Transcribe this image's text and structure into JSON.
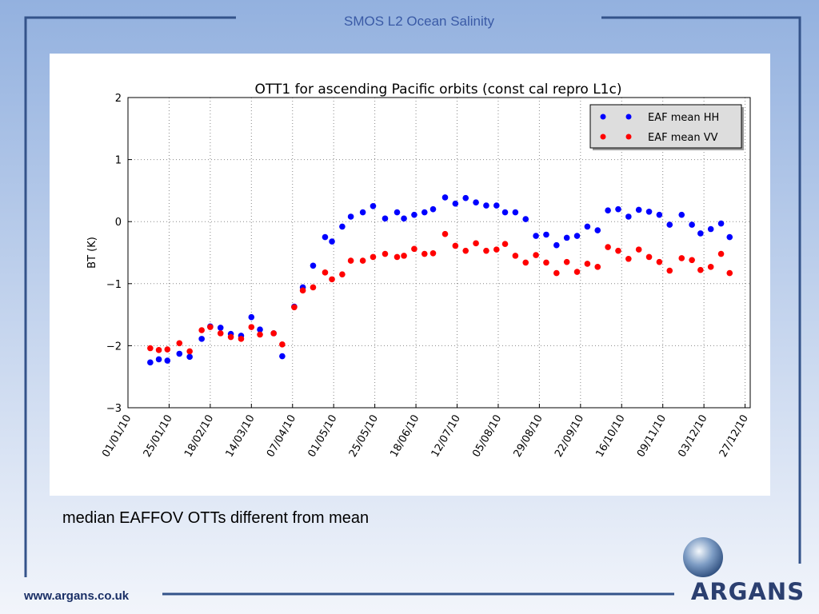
{
  "header": "SMOS L2 Ocean Salinity",
  "caption": "median EAFFOV OTTs different from mean",
  "footer": "www.argans.co.uk",
  "logo_text": "ARGANS",
  "chart_data": {
    "type": "scatter",
    "title": "OTT1 for ascending Pacific orbits (const cal repro L1c)",
    "y_label": "BT (K)",
    "x": [
      "2010-01-14",
      "2010-01-19",
      "2010-01-24",
      "2010-01-31",
      "2010-02-06",
      "2010-02-13",
      "2010-02-18",
      "2010-02-24",
      "2010-03-02",
      "2010-03-08",
      "2010-03-14",
      "2010-03-19",
      "2010-03-27",
      "2010-04-01",
      "2010-04-08",
      "2010-04-13",
      "2010-04-19",
      "2010-04-26",
      "2010-04-30",
      "2010-05-06",
      "2010-05-11",
      "2010-05-18",
      "2010-05-24",
      "2010-05-31",
      "2010-06-07",
      "2010-06-11",
      "2010-06-17",
      "2010-06-23",
      "2010-06-28",
      "2010-07-05",
      "2010-07-11",
      "2010-07-17",
      "2010-07-23",
      "2010-07-29",
      "2010-08-04",
      "2010-08-09",
      "2010-08-15",
      "2010-08-21",
      "2010-08-27",
      "2010-09-02",
      "2010-09-08",
      "2010-09-14",
      "2010-09-20",
      "2010-09-26",
      "2010-10-02",
      "2010-10-08",
      "2010-10-14",
      "2010-10-20",
      "2010-10-26",
      "2010-11-01",
      "2010-11-07",
      "2010-11-13",
      "2010-11-20",
      "2010-11-26",
      "2010-12-01",
      "2010-12-07",
      "2010-12-13",
      "2010-12-18"
    ],
    "series": [
      {
        "name": "EAF mean HH",
        "color": "#0000ff",
        "values": [
          -2.27,
          -2.22,
          -2.24,
          -2.13,
          -2.18,
          -1.89,
          -1.69,
          -1.71,
          -1.81,
          -1.84,
          -1.54,
          -1.74,
          -1.8,
          -2.17,
          -1.37,
          -1.06,
          -0.71,
          -0.25,
          -0.32,
          -0.08,
          0.08,
          0.15,
          0.25,
          0.05,
          0.15,
          0.05,
          0.11,
          0.15,
          0.2,
          0.39,
          0.29,
          0.38,
          0.31,
          0.26,
          0.26,
          0.15,
          0.15,
          0.04,
          -0.23,
          -0.21,
          -0.38,
          -0.26,
          -0.23,
          -0.08,
          -0.14,
          0.18,
          0.2,
          0.08,
          0.19,
          0.16,
          0.11,
          -0.05,
          0.11,
          -0.05,
          -0.19,
          -0.12,
          -0.03,
          -0.25
        ]
      },
      {
        "name": "EAF mean VV",
        "color": "#ff0000",
        "values": [
          -2.04,
          -2.07,
          -2.06,
          -1.96,
          -2.09,
          -1.75,
          -1.7,
          -1.8,
          -1.86,
          -1.89,
          -1.7,
          -1.82,
          -1.8,
          -1.98,
          -1.38,
          -1.11,
          -1.06,
          -0.82,
          -0.93,
          -0.85,
          -0.63,
          -0.63,
          -0.57,
          -0.52,
          -0.57,
          -0.55,
          -0.44,
          -0.52,
          -0.51,
          -0.2,
          -0.39,
          -0.47,
          -0.35,
          -0.47,
          -0.45,
          -0.36,
          -0.55,
          -0.66,
          -0.54,
          -0.66,
          -0.83,
          -0.65,
          -0.81,
          -0.68,
          -0.73,
          -0.41,
          -0.47,
          -0.6,
          -0.45,
          -0.57,
          -0.65,
          -0.79,
          -0.59,
          -0.62,
          -0.78,
          -0.73,
          -0.52,
          -0.83
        ]
      }
    ],
    "xlim": [
      "2010-01-01",
      "2010-12-30"
    ],
    "xticks": [
      {
        "value": "2010-01-01",
        "label": "01/01/10"
      },
      {
        "value": "2010-01-25",
        "label": "25/01/10"
      },
      {
        "value": "2010-02-18",
        "label": "18/02/10"
      },
      {
        "value": "2010-03-14",
        "label": "14/03/10"
      },
      {
        "value": "2010-04-07",
        "label": "07/04/10"
      },
      {
        "value": "2010-05-01",
        "label": "01/05/10"
      },
      {
        "value": "2010-05-25",
        "label": "25/05/10"
      },
      {
        "value": "2010-06-18",
        "label": "18/06/10"
      },
      {
        "value": "2010-07-12",
        "label": "12/07/10"
      },
      {
        "value": "2010-08-05",
        "label": "05/08/10"
      },
      {
        "value": "2010-08-29",
        "label": "29/08/10"
      },
      {
        "value": "2010-09-22",
        "label": "22/09/10"
      },
      {
        "value": "2010-10-16",
        "label": "16/10/10"
      },
      {
        "value": "2010-11-09",
        "label": "09/11/10"
      },
      {
        "value": "2010-12-03",
        "label": "03/12/10"
      },
      {
        "value": "2010-12-27",
        "label": "27/12/10"
      }
    ],
    "ylim": [
      -3,
      2
    ],
    "yticks": [
      {
        "value": -3,
        "label": "−3"
      },
      {
        "value": -2,
        "label": "−2"
      },
      {
        "value": -1,
        "label": "−1"
      },
      0,
      1,
      2
    ],
    "grid": true,
    "legend": "upper right"
  }
}
